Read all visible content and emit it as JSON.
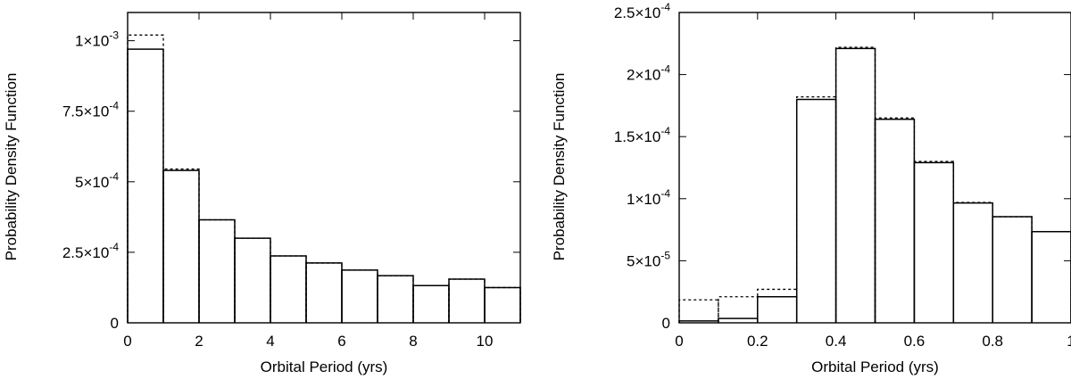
{
  "chart_data": [
    {
      "type": "bar",
      "subtype": "histogram",
      "xlabel": "Orbital Period (yrs)",
      "ylabel": "Probability Density Function",
      "xlim": [
        0,
        11
      ],
      "ylim": [
        0,
        0.0011
      ],
      "bin_width": 1,
      "bin_starts": [
        0,
        1,
        2,
        3,
        4,
        5,
        6,
        7,
        8,
        9,
        10
      ],
      "x_ticks": [
        {
          "value": 0,
          "label": "0"
        },
        {
          "value": 2,
          "label": "2"
        },
        {
          "value": 4,
          "label": "4"
        },
        {
          "value": 6,
          "label": "6"
        },
        {
          "value": 8,
          "label": "8"
        },
        {
          "value": 10,
          "label": "10"
        }
      ],
      "y_ticks": [
        {
          "value": 0,
          "mant": "0",
          "exp": ""
        },
        {
          "value": 0.00025,
          "mant": "2.5×10",
          "exp": "-4"
        },
        {
          "value": 0.0005,
          "mant": "5×10",
          "exp": "-4"
        },
        {
          "value": 0.00075,
          "mant": "7.5×10",
          "exp": "-4"
        },
        {
          "value": 0.001,
          "mant": "1×10",
          "exp": "-3"
        }
      ],
      "series": [
        {
          "style": "solid",
          "values": [
            0.00097,
            0.00054,
            0.000365,
            0.0003,
            0.000237,
            0.000212,
            0.000187,
            0.000167,
            0.000132,
            0.000155,
            0.000125
          ]
        },
        {
          "style": "dotted",
          "values": [
            0.00102,
            0.000545,
            0.000365,
            0.0003,
            0.000237,
            0.000212,
            0.000187,
            0.000167,
            0.000132,
            0.000155,
            0.000125
          ]
        }
      ],
      "grid": false
    },
    {
      "type": "bar",
      "subtype": "histogram",
      "xlabel": "Orbital Period (yrs)",
      "ylabel": "Probability Density Function",
      "xlim": [
        0,
        1
      ],
      "ylim": [
        0,
        0.00025
      ],
      "bin_width": 0.1,
      "bin_starts": [
        0,
        0.1,
        0.2,
        0.3,
        0.4,
        0.5,
        0.6,
        0.7,
        0.8,
        0.9
      ],
      "x_ticks": [
        {
          "value": 0,
          "label": "0"
        },
        {
          "value": 0.2,
          "label": "0.2"
        },
        {
          "value": 0.4,
          "label": "0.4"
        },
        {
          "value": 0.6,
          "label": "0.6"
        },
        {
          "value": 0.8,
          "label": "0.8"
        },
        {
          "value": 1,
          "label": "1"
        }
      ],
      "y_ticks": [
        {
          "value": 0,
          "mant": "0",
          "exp": ""
        },
        {
          "value": 5e-05,
          "mant": "5×10",
          "exp": "-5"
        },
        {
          "value": 0.0001,
          "mant": "1×10",
          "exp": "-4"
        },
        {
          "value": 0.00015,
          "mant": "1.5×10",
          "exp": "-4"
        },
        {
          "value": 0.0002,
          "mant": "2×10",
          "exp": "-4"
        },
        {
          "value": 0.00025,
          "mant": "2.5×10",
          "exp": "-4"
        }
      ],
      "series": [
        {
          "style": "solid",
          "values": [
            1.5e-06,
            3.5e-06,
            2.1e-05,
            0.00018,
            0.000221,
            0.000164,
            0.000129,
            9.65e-05,
            8.55e-05,
            7.35e-05
          ]
        },
        {
          "style": "dotted",
          "values": [
            1.85e-05,
            2.1e-05,
            2.7e-05,
            0.000182,
            0.000222,
            0.000165,
            0.00013,
            9.7e-05,
            8.55e-05,
            7.35e-05
          ]
        }
      ],
      "grid": false
    }
  ]
}
